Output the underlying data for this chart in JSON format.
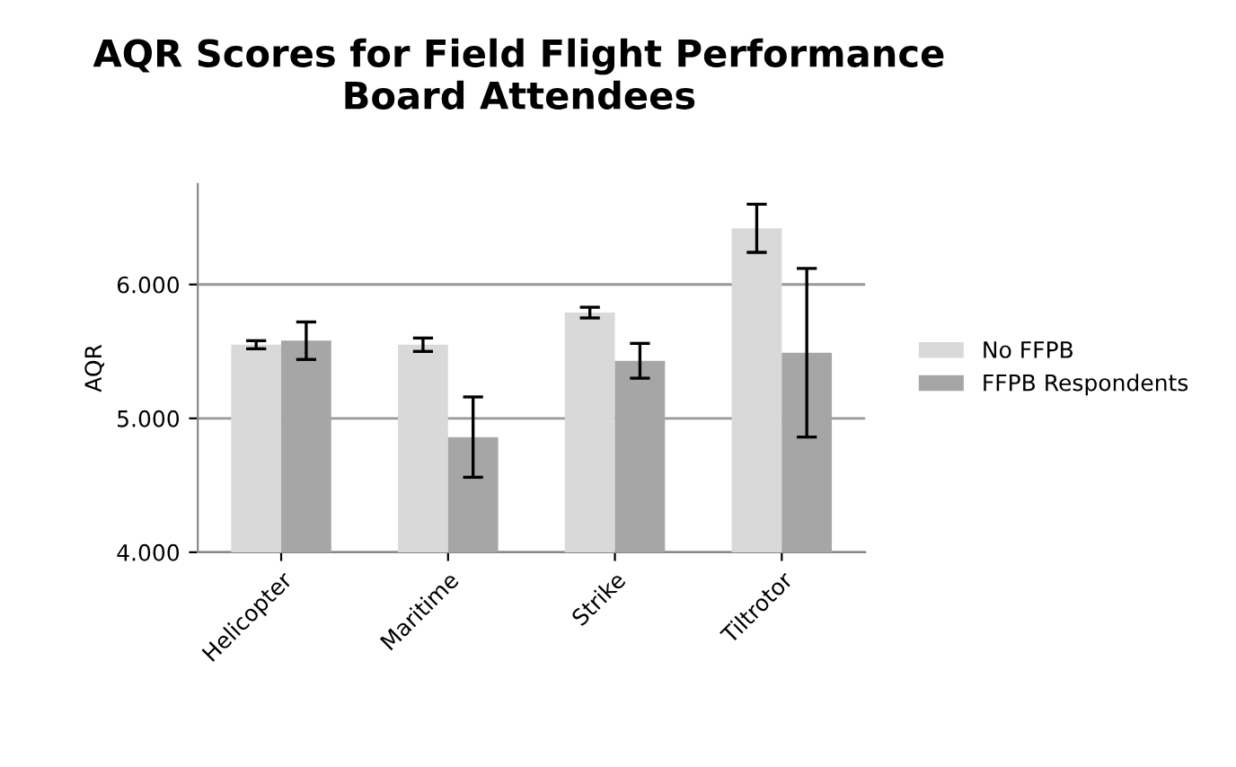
{
  "chart_data": {
    "type": "bar",
    "title": "AQR Scores for Field Flight Performance\nBoard Attendees",
    "ylabel": "AQR",
    "categories": [
      "Helicopter",
      "Maritime",
      "Strike",
      "Tiltrotor"
    ],
    "series": [
      {
        "name": "No FFPB",
        "color": "#d9d9d9",
        "values": [
          5.55,
          5.55,
          5.79,
          6.42
        ],
        "errors": [
          0.03,
          0.05,
          0.04,
          0.18
        ]
      },
      {
        "name": "FFPB Respondents",
        "color": "#a6a6a6",
        "values": [
          5.58,
          4.86,
          5.43,
          5.49
        ],
        "errors": [
          0.14,
          0.3,
          0.13,
          0.63
        ]
      }
    ],
    "ylim": [
      4,
      6.75
    ],
    "yticks": [
      {
        "value": 4,
        "label": "4.000"
      },
      {
        "value": 5,
        "label": "5.000"
      },
      {
        "value": 6,
        "label": "6.000"
      }
    ],
    "grid": "y",
    "legend": "right"
  }
}
